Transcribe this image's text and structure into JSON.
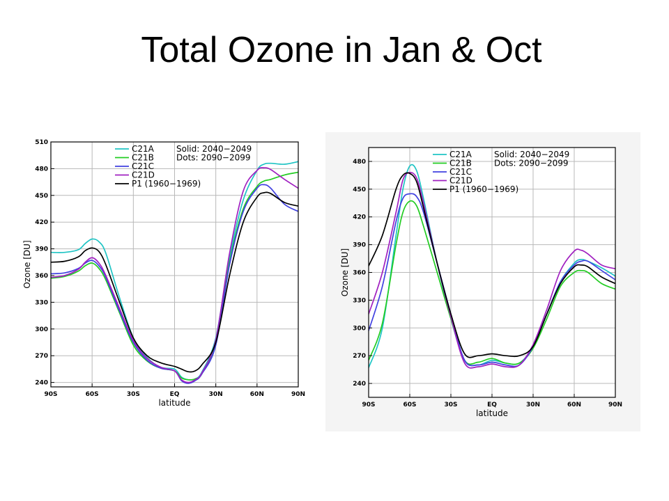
{
  "slide": {
    "title": "Total Ozone in Jan & Oct"
  },
  "chart_data": [
    {
      "type": "line",
      "title": "",
      "xlabel": "latitude",
      "ylabel": "Ozone [DU]",
      "xlim": [
        -90,
        90
      ],
      "ylim": [
        235,
        510
      ],
      "x_ticks": [
        -90,
        -60,
        -30,
        0,
        30,
        60,
        90
      ],
      "x_tick_labels": [
        "90S",
        "60S",
        "30S",
        "EQ",
        "30N",
        "60N",
        "90N"
      ],
      "y_ticks": [
        240,
        270,
        300,
        330,
        360,
        390,
        420,
        450,
        480,
        510
      ],
      "y_tick_labels": [
        "240",
        "270",
        "300",
        "330",
        "360",
        "390",
        "420",
        "450",
        "480",
        "510"
      ],
      "grid": true,
      "legend": {
        "placement": "top-right",
        "note_solid": "Solid: 2040−2049",
        "note_dots": "Dots: 2090−2099"
      },
      "series": [
        {
          "name": "C21A",
          "color": "#1fc4c4",
          "x": [
            -90,
            -80,
            -70,
            -65,
            -60,
            -55,
            -50,
            -40,
            -30,
            -20,
            -10,
            0,
            5,
            10,
            15,
            20,
            30,
            40,
            50,
            60,
            65,
            70,
            80,
            90
          ],
          "y": [
            386,
            386,
            389,
            396,
            401,
            398,
            385,
            335,
            290,
            268,
            257,
            255,
            246,
            243,
            244,
            252,
            290,
            380,
            445,
            478,
            485,
            486,
            485,
            488
          ]
        },
        {
          "name": "C21B",
          "color": "#22cc22",
          "x": [
            -90,
            -80,
            -70,
            -65,
            -60,
            -55,
            -50,
            -40,
            -30,
            -20,
            -10,
            0,
            5,
            10,
            15,
            20,
            30,
            40,
            50,
            60,
            65,
            70,
            80,
            90
          ],
          "y": [
            357,
            359,
            365,
            371,
            374,
            368,
            355,
            318,
            282,
            264,
            256,
            253,
            245,
            243,
            244,
            250,
            285,
            375,
            435,
            460,
            466,
            468,
            473,
            476
          ]
        },
        {
          "name": "C21C",
          "color": "#4040e0",
          "x": [
            -90,
            -80,
            -70,
            -65,
            -60,
            -55,
            -50,
            -40,
            -30,
            -20,
            -10,
            0,
            5,
            10,
            15,
            20,
            30,
            40,
            50,
            60,
            65,
            70,
            80,
            90
          ],
          "y": [
            362,
            363,
            368,
            374,
            377,
            371,
            358,
            320,
            285,
            265,
            256,
            253,
            242,
            239,
            242,
            250,
            282,
            372,
            432,
            458,
            462,
            458,
            440,
            432
          ]
        },
        {
          "name": "C21D",
          "color": "#a020c0",
          "x": [
            -90,
            -80,
            -70,
            -65,
            -60,
            -55,
            -50,
            -40,
            -30,
            -20,
            -10,
            0,
            5,
            10,
            15,
            20,
            30,
            40,
            50,
            60,
            65,
            70,
            80,
            90
          ],
          "y": [
            358,
            360,
            367,
            375,
            380,
            374,
            360,
            323,
            287,
            267,
            257,
            253,
            243,
            240,
            243,
            251,
            288,
            385,
            455,
            478,
            481,
            479,
            468,
            458
          ]
        },
        {
          "name": "P1 (1960−1969)",
          "color": "#000000",
          "x": [
            -90,
            -80,
            -70,
            -65,
            -60,
            -55,
            -50,
            -40,
            -30,
            -20,
            -10,
            0,
            5,
            10,
            15,
            20,
            30,
            40,
            50,
            60,
            65,
            70,
            80,
            90
          ],
          "y": [
            375,
            376,
            381,
            388,
            391,
            387,
            372,
            330,
            290,
            270,
            262,
            258,
            255,
            252,
            253,
            260,
            285,
            360,
            420,
            448,
            453,
            452,
            442,
            438
          ]
        }
      ]
    },
    {
      "type": "line",
      "title": "",
      "xlabel": "latitude",
      "ylabel": "Ozone [DU]",
      "xlim": [
        -90,
        90
      ],
      "ylim": [
        225,
        495
      ],
      "x_ticks": [
        -90,
        -60,
        -30,
        0,
        30,
        60,
        90
      ],
      "x_tick_labels": [
        "90S",
        "60S",
        "30S",
        "EQ",
        "30N",
        "60N",
        "90N"
      ],
      "y_ticks": [
        240,
        270,
        300,
        330,
        360,
        390,
        420,
        450,
        480
      ],
      "y_tick_labels": [
        "240",
        "270",
        "300",
        "330",
        "360",
        "390",
        "420",
        "450",
        "480"
      ],
      "grid": true,
      "legend": {
        "placement": "top-right",
        "note_solid": "Solid: 2040−2049",
        "note_dots": "Dots: 2090−2099"
      },
      "series": [
        {
          "name": "C21A",
          "color": "#1fc4c4",
          "x": [
            -90,
            -80,
            -70,
            -65,
            -60,
            -55,
            -50,
            -40,
            -30,
            -20,
            -10,
            0,
            10,
            20,
            30,
            40,
            50,
            60,
            65,
            70,
            80,
            90
          ],
          "y": [
            257,
            300,
            400,
            450,
            475,
            470,
            440,
            370,
            310,
            265,
            260,
            265,
            262,
            262,
            280,
            315,
            350,
            370,
            374,
            372,
            365,
            356
          ]
        },
        {
          "name": "C21B",
          "color": "#22cc22",
          "x": [
            -90,
            -80,
            -70,
            -65,
            -60,
            -55,
            -50,
            -40,
            -30,
            -20,
            -10,
            0,
            10,
            20,
            30,
            40,
            50,
            60,
            65,
            70,
            80,
            90
          ],
          "y": [
            265,
            305,
            390,
            425,
            437,
            432,
            410,
            360,
            310,
            265,
            263,
            267,
            262,
            262,
            278,
            310,
            345,
            360,
            362,
            360,
            348,
            342
          ]
        },
        {
          "name": "C21C",
          "color": "#4040e0",
          "x": [
            -90,
            -80,
            -70,
            -65,
            -60,
            -55,
            -50,
            -40,
            -30,
            -20,
            -10,
            0,
            10,
            20,
            30,
            40,
            50,
            60,
            65,
            70,
            80,
            90
          ],
          "y": [
            297,
            345,
            415,
            440,
            445,
            442,
            425,
            370,
            315,
            265,
            260,
            263,
            260,
            260,
            280,
            315,
            350,
            368,
            372,
            372,
            362,
            352
          ]
        },
        {
          "name": "C21D",
          "color": "#a020c0",
          "x": [
            -90,
            -80,
            -70,
            -65,
            -60,
            -55,
            -50,
            -40,
            -30,
            -20,
            -10,
            0,
            10,
            20,
            30,
            40,
            50,
            60,
            65,
            70,
            80,
            90
          ],
          "y": [
            315,
            360,
            425,
            460,
            468,
            462,
            435,
            370,
            312,
            262,
            258,
            261,
            258,
            260,
            282,
            320,
            362,
            383,
            384,
            380,
            368,
            364
          ]
        },
        {
          "name": "P1 (1960−1969)",
          "color": "#000000",
          "x": [
            -90,
            -80,
            -70,
            -65,
            -60,
            -55,
            -50,
            -40,
            -30,
            -20,
            -10,
            0,
            10,
            20,
            30,
            40,
            50,
            60,
            65,
            70,
            80,
            90
          ],
          "y": [
            367,
            400,
            450,
            465,
            467,
            458,
            430,
            370,
            315,
            272,
            270,
            272,
            270,
            270,
            280,
            315,
            348,
            366,
            368,
            366,
            355,
            348
          ]
        }
      ]
    }
  ]
}
